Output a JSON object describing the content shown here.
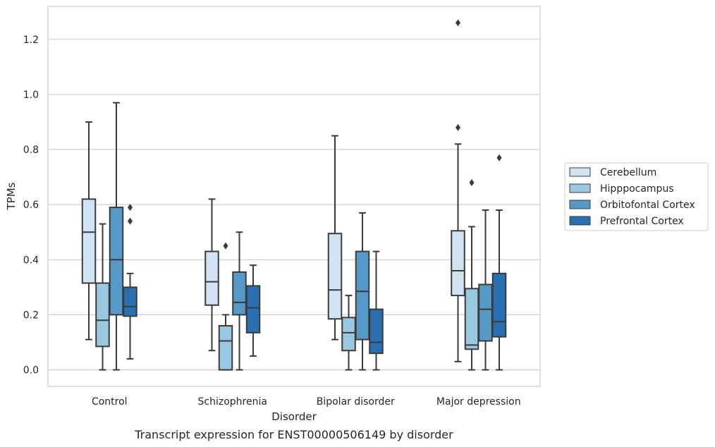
{
  "chart_data": {
    "type": "box",
    "caption": "Transcript expression for ENST00000506149 by disorder",
    "xlabel": "Disorder",
    "ylabel": "TPMs",
    "ylim": [
      -0.06,
      1.32
    ],
    "yticks": [
      0.0,
      0.2,
      0.4,
      0.6,
      0.8,
      1.0,
      1.2
    ],
    "grid": "horizontal",
    "legend_position": "right",
    "categories": [
      "Control",
      "Schizophrenia",
      "Bipolar disorder",
      "Major depression"
    ],
    "series": [
      {
        "name": "Cerebellum",
        "color": "#d2e3f3",
        "boxes": [
          {
            "whislo": 0.11,
            "q1": 0.315,
            "med": 0.5,
            "q3": 0.62,
            "whishi": 0.9,
            "fliers": []
          },
          {
            "whislo": 0.07,
            "q1": 0.235,
            "med": 0.32,
            "q3": 0.43,
            "whishi": 0.62,
            "fliers": []
          },
          {
            "whislo": 0.11,
            "q1": 0.185,
            "med": 0.29,
            "q3": 0.495,
            "whishi": 0.85,
            "fliers": []
          },
          {
            "whislo": 0.03,
            "q1": 0.27,
            "med": 0.36,
            "q3": 0.505,
            "whishi": 0.82,
            "fliers": [
              0.88,
              1.26
            ]
          }
        ]
      },
      {
        "name": "Hipppocampus",
        "color": "#9ac8e0",
        "boxes": [
          {
            "whislo": 0.0,
            "q1": 0.085,
            "med": 0.18,
            "q3": 0.315,
            "whishi": 0.53,
            "fliers": []
          },
          {
            "whislo": 0.0,
            "q1": 0.0,
            "med": 0.105,
            "q3": 0.16,
            "whishi": 0.2,
            "fliers": [
              0.45
            ]
          },
          {
            "whislo": 0.0,
            "q1": 0.07,
            "med": 0.135,
            "q3": 0.19,
            "whishi": 0.27,
            "fliers": []
          },
          {
            "whislo": 0.0,
            "q1": 0.075,
            "med": 0.09,
            "q3": 0.295,
            "whishi": 0.52,
            "fliers": [
              0.68
            ]
          }
        ]
      },
      {
        "name": "Orbitofontal Cortex",
        "color": "#5799c6",
        "boxes": [
          {
            "whislo": 0.0,
            "q1": 0.2,
            "med": 0.4,
            "q3": 0.59,
            "whishi": 0.97,
            "fliers": []
          },
          {
            "whislo": 0.0,
            "q1": 0.2,
            "med": 0.245,
            "q3": 0.355,
            "whishi": 0.5,
            "fliers": []
          },
          {
            "whislo": 0.0,
            "q1": 0.11,
            "med": 0.285,
            "q3": 0.43,
            "whishi": 0.57,
            "fliers": []
          },
          {
            "whislo": 0.0,
            "q1": 0.105,
            "med": 0.22,
            "q3": 0.31,
            "whishi": 0.58,
            "fliers": []
          }
        ]
      },
      {
        "name": "Prefrontal Cortex",
        "color": "#2a6fb1",
        "boxes": [
          {
            "whislo": 0.04,
            "q1": 0.195,
            "med": 0.23,
            "q3": 0.3,
            "whishi": 0.35,
            "fliers": [
              0.54,
              0.59
            ]
          },
          {
            "whislo": 0.05,
            "q1": 0.135,
            "med": 0.225,
            "q3": 0.305,
            "whishi": 0.38,
            "fliers": []
          },
          {
            "whislo": 0.0,
            "q1": 0.06,
            "med": 0.1,
            "q3": 0.22,
            "whishi": 0.43,
            "fliers": []
          },
          {
            "whislo": 0.0,
            "q1": 0.12,
            "med": 0.175,
            "q3": 0.35,
            "whishi": 0.58,
            "fliers": [
              0.77
            ]
          }
        ]
      }
    ]
  }
}
